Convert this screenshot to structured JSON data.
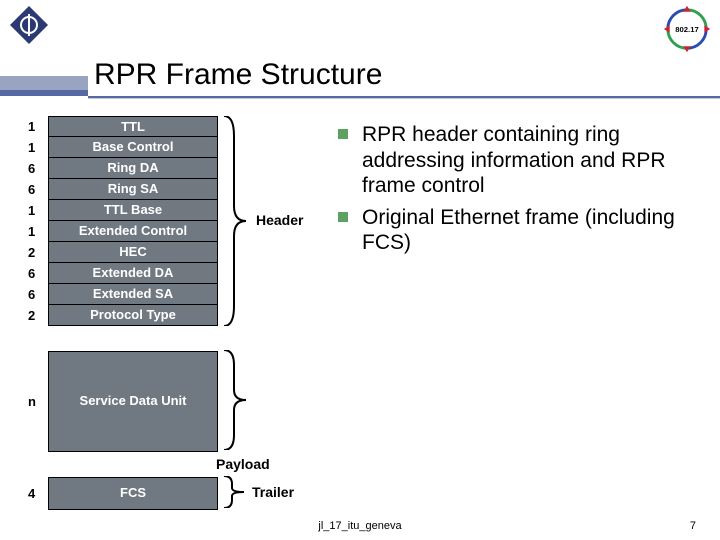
{
  "title": "RPR Frame Structure",
  "ring_label": "802.17",
  "frame_rows": [
    {
      "n": "1",
      "label": "TTL"
    },
    {
      "n": "1",
      "label": "Base Control"
    },
    {
      "n": "6",
      "label": "Ring DA"
    },
    {
      "n": "6",
      "label": "Ring SA"
    },
    {
      "n": "1",
      "label": "TTL Base"
    },
    {
      "n": "1",
      "label": "Extended Control"
    },
    {
      "n": "2",
      "label": "HEC"
    },
    {
      "n": "6",
      "label": "Extended DA"
    },
    {
      "n": "6",
      "label": "Extended SA"
    },
    {
      "n": "2",
      "label": "Protocol Type"
    }
  ],
  "sdu": {
    "n": "n",
    "label": "Service Data Unit"
  },
  "fcs": {
    "n": "4",
    "label": "FCS"
  },
  "sections": {
    "header": "Header",
    "payload": "Payload",
    "trailer": "Trailer"
  },
  "bullets": [
    "RPR header containing ring addressing information and RPR frame control",
    "Original Ethernet frame (including FCS)"
  ],
  "footer_ref": "jl_17_itu_geneva",
  "page_number": "7",
  "colors": {
    "cell_bg": "#707882",
    "accent": "#5569a5",
    "bullet": "#5ea060"
  }
}
